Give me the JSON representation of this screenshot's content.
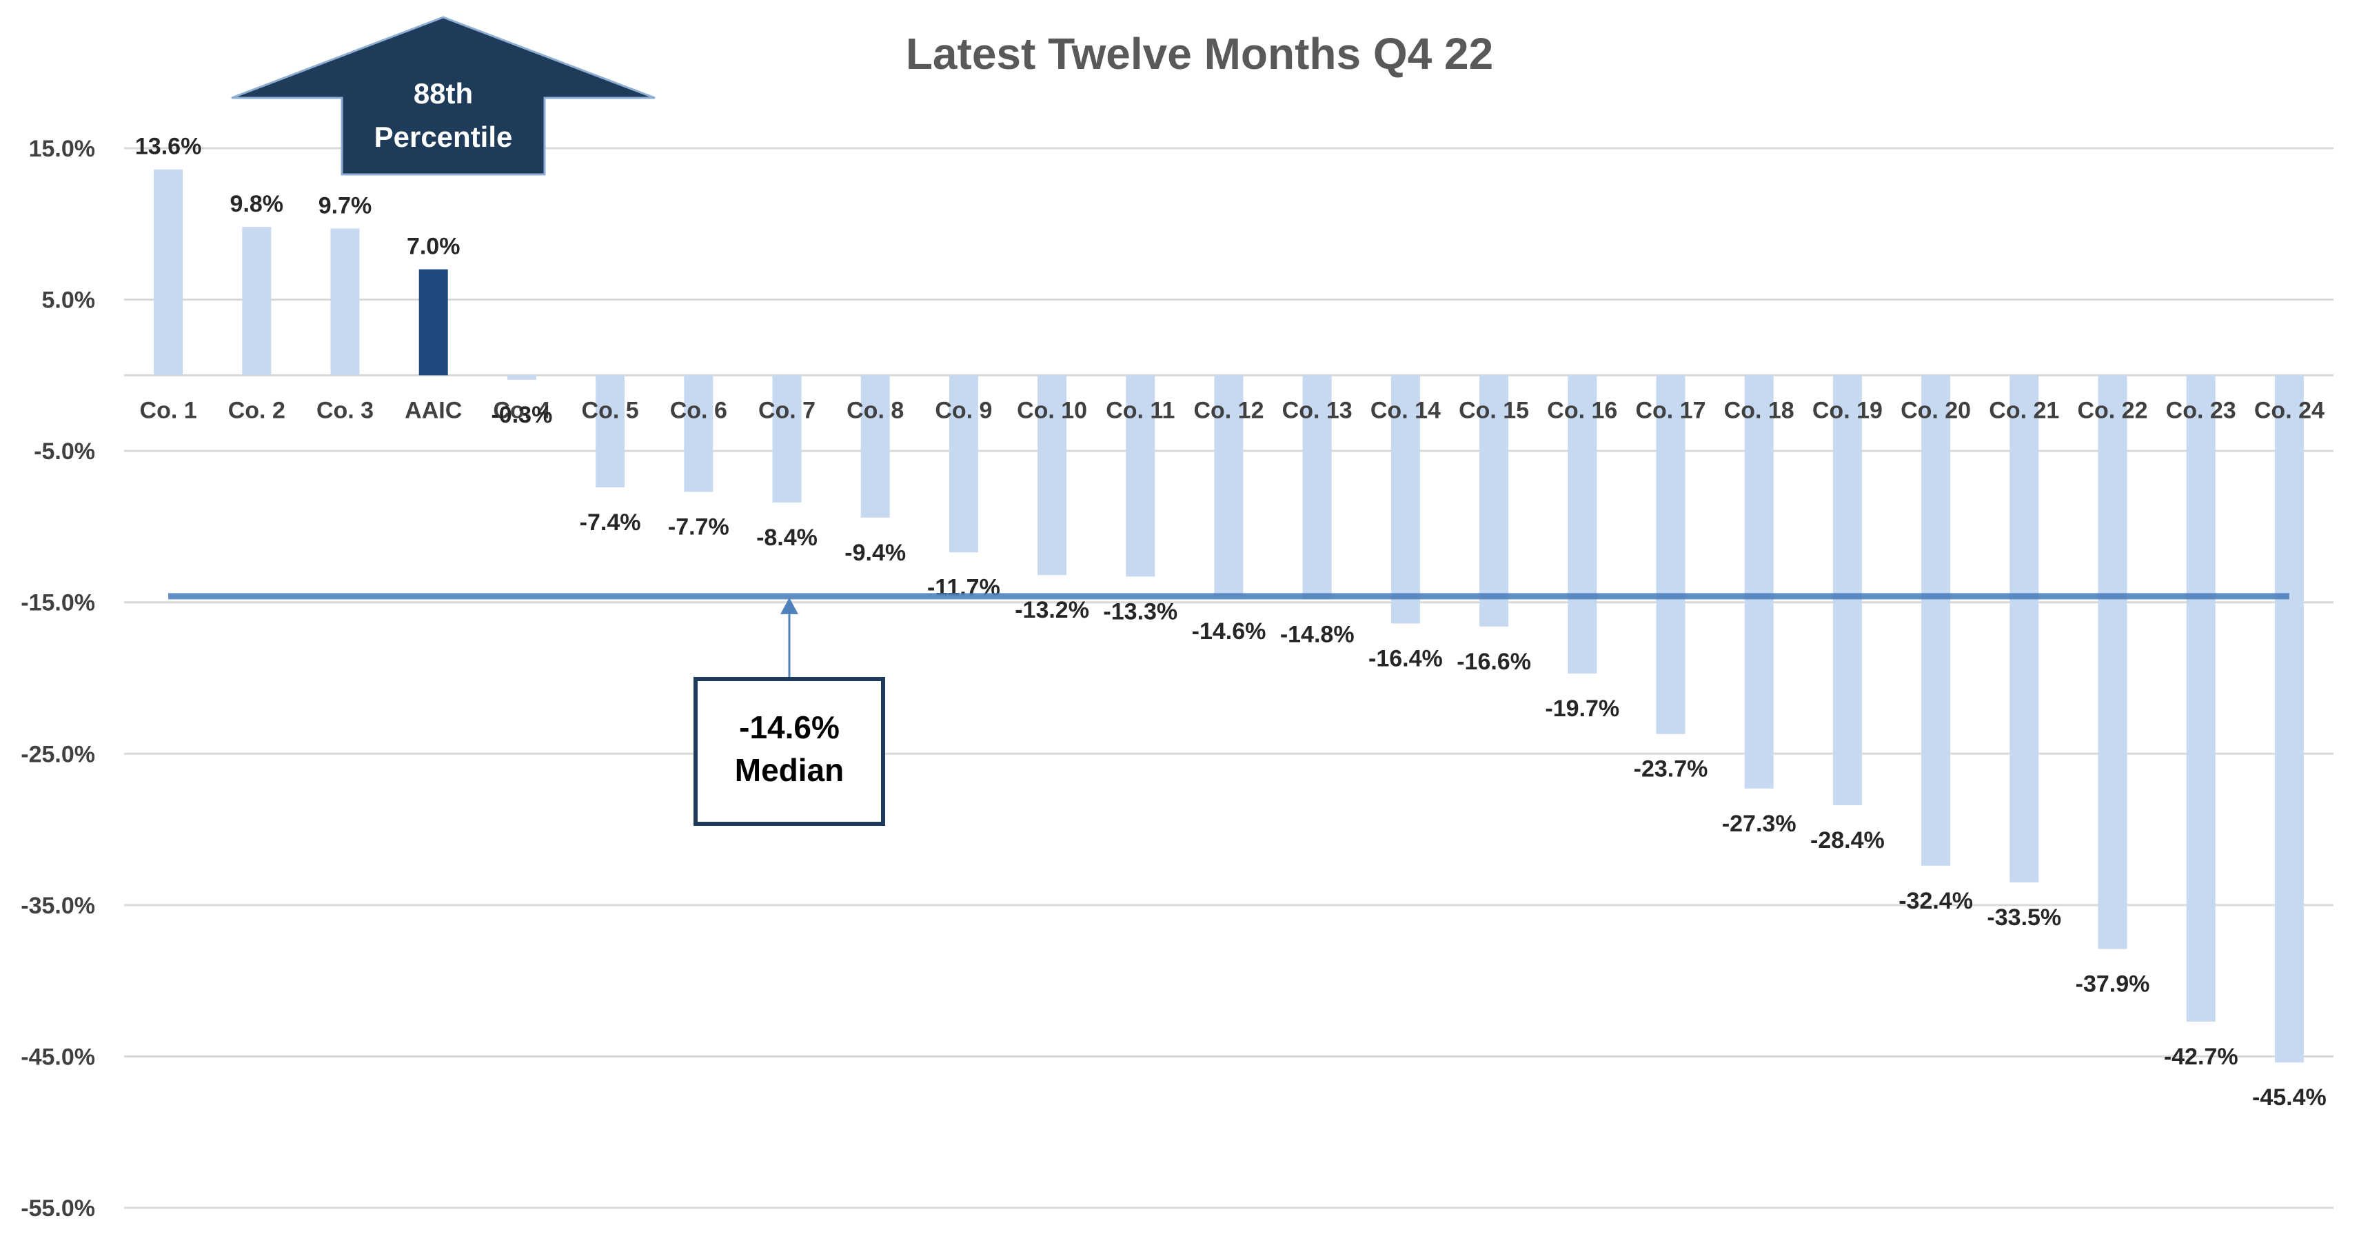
{
  "chart_data": {
    "type": "bar",
    "title": "Latest Twelve Months Q4 22",
    "categories": [
      "Co. 1",
      "Co. 2",
      "Co. 3",
      "AAIC",
      "Co. 4",
      "Co. 5",
      "Co. 6",
      "Co. 7",
      "Co. 8",
      "Co. 9",
      "Co. 10",
      "Co. 11",
      "Co. 12",
      "Co. 13",
      "Co. 14",
      "Co. 15",
      "Co. 16",
      "Co. 17",
      "Co. 18",
      "Co. 19",
      "Co. 20",
      "Co. 21",
      "Co. 22",
      "Co. 23",
      "Co. 24"
    ],
    "values": [
      13.6,
      9.8,
      9.7,
      7.0,
      -0.3,
      -7.4,
      -7.7,
      -8.4,
      -9.4,
      -11.7,
      -13.2,
      -13.3,
      -14.6,
      -14.8,
      -16.4,
      -16.6,
      -19.7,
      -23.7,
      -27.3,
      -28.4,
      -32.4,
      -33.5,
      -37.9,
      -42.7,
      -45.4
    ],
    "value_labels": [
      "13.6%",
      "9.8%",
      "9.7%",
      "7.0%",
      "-0.3%",
      "-7.4%",
      "-7.7%",
      "-8.4%",
      "-9.4%",
      "-11.7%",
      "-13.2%",
      "-13.3%",
      "-14.6%",
      "-14.8%",
      "-16.4%",
      "-16.6%",
      "-19.7%",
      "-23.7%",
      "-27.3%",
      "-28.4%",
      "-32.4%",
      "-33.5%",
      "-37.9%",
      "-42.7%",
      "-45.4%"
    ],
    "highlight_category": "AAIC",
    "ylim": [
      -55,
      15
    ],
    "yticks": [
      15,
      5,
      -5,
      -15,
      -25,
      -35,
      -45,
      -55
    ],
    "ytick_labels": [
      "15.0%",
      "5.0%",
      "-5.0%",
      "-15.0%",
      "-25.0%",
      "-35.0%",
      "-45.0%",
      "-55.0%"
    ],
    "grid": true,
    "xlabel": "",
    "ylabel": "",
    "median": {
      "value": -14.6,
      "label_value": "-14.6%",
      "label_text": "Median"
    },
    "percentile_arrow": {
      "line1": "88th",
      "line2": "Percentile"
    },
    "colors": {
      "bar": "#c6d9f1",
      "highlight": "#1f497d",
      "median_line": "#4f81bd",
      "arrow_fill": "#1f3b5a",
      "callout_border": "#1f3b5a"
    }
  }
}
